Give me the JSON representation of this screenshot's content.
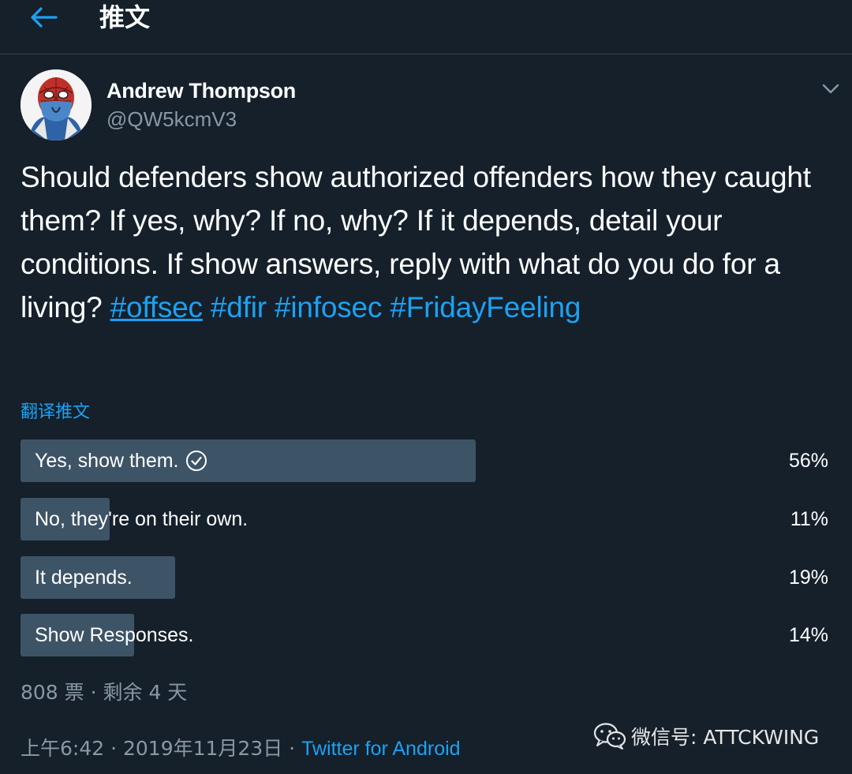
{
  "header": {
    "title": "推文",
    "back_icon": "arrow-left-icon"
  },
  "colors": {
    "background": "#15202b",
    "accent": "#1da1f2",
    "secondary_text": "#8899a6",
    "poll_bar": "#3d5466"
  },
  "tweet": {
    "author_name": "Andrew Thompson",
    "author_handle": "@QW5kcmV3",
    "text": "Should defenders show authorized offenders how they caught them? If yes, why? If no, why? If it depends, detail your conditions. If show answers, reply with what do you do for a living?",
    "hashtags": [
      "#offsec",
      "#dfir",
      "#infosec",
      "#FridayFeeling"
    ],
    "translate_label": "翻译推文"
  },
  "poll": {
    "options": [
      {
        "label": "Yes, show them.",
        "percent": "56%",
        "fraction": 0.56,
        "selected": true
      },
      {
        "label": "No, they're on their own.",
        "percent": "11%",
        "fraction": 0.11,
        "selected": false
      },
      {
        "label": "It depends.",
        "percent": "19%",
        "fraction": 0.19,
        "selected": false
      },
      {
        "label": "Show Responses.",
        "percent": "14%",
        "fraction": 0.14,
        "selected": false
      }
    ],
    "meta": "808 票 · 剩余 4 天"
  },
  "footer": {
    "timestamp": "上午6:42 · 2019年11月23日 · ",
    "source": "Twitter for Android"
  },
  "watermark": {
    "text": "微信号: ATTCKWING",
    "icon": "wechat-icon"
  }
}
